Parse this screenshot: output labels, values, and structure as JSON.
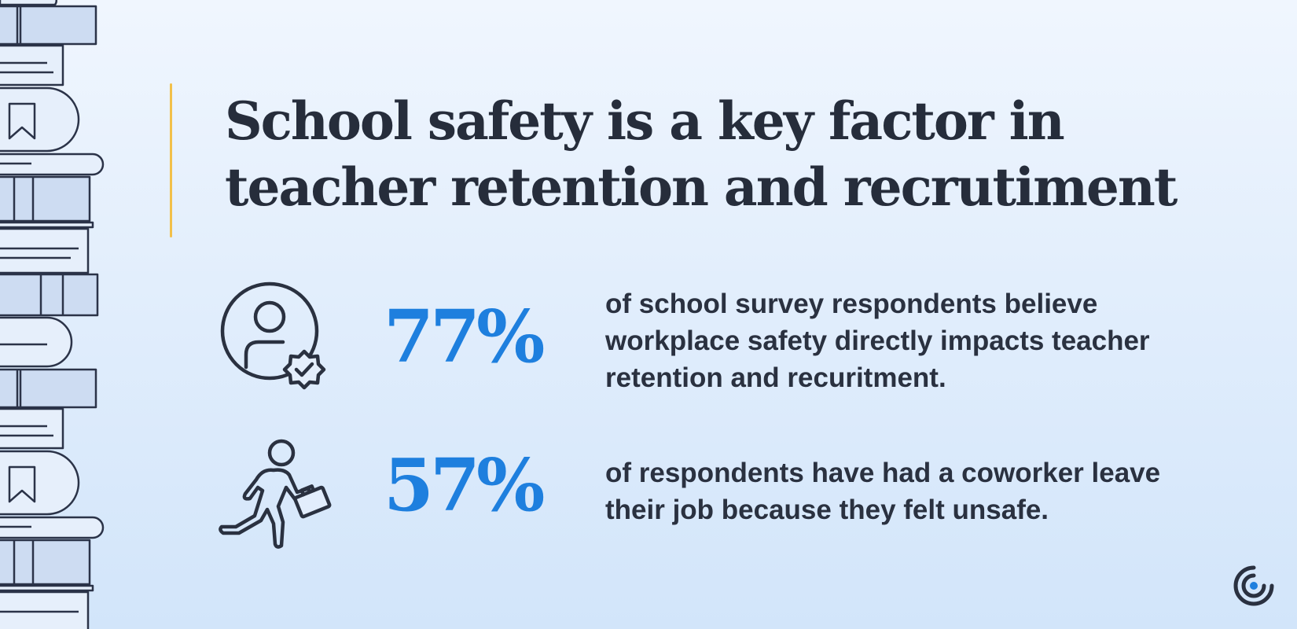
{
  "headline": {
    "line1": "School safety is a key factor in",
    "line2": "teacher retention and recrutiment"
  },
  "stats": [
    {
      "value": "77%",
      "icon": "user-verified-badge-icon",
      "description": "of school survey respondents believe workplace safety directly impacts teacher retention and recuritment."
    },
    {
      "value": "57%",
      "icon": "person-running-with-briefcase-icon",
      "description": "of respondents have had a coworker leave their job because they felt unsafe."
    }
  ],
  "decor": {
    "left_border": "stack-of-books-illustration",
    "logo": "brand-logo-icon"
  },
  "colors": {
    "accent_blue": "#1e7fde",
    "accent_yellow": "#f2c04a",
    "text_dark": "#262d3b",
    "background_top": "#f0f6fe",
    "background_bottom": "#d2e5fa"
  }
}
